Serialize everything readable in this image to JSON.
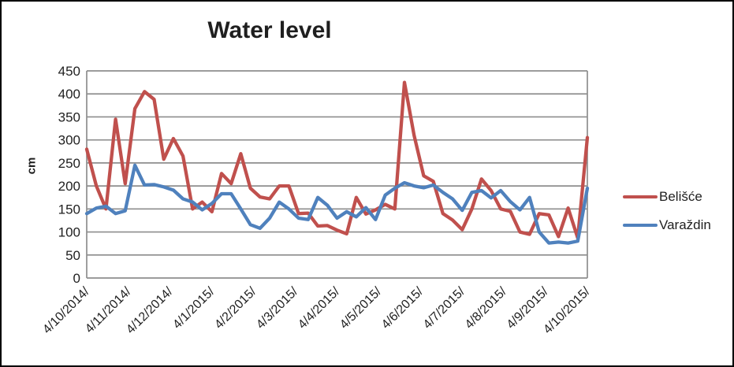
{
  "chart": {
    "title": "Water level",
    "y_axis_title": "cm",
    "legend": [
      {
        "label": "Belišće",
        "color": "#c0504d"
      },
      {
        "label": "Varaždin",
        "color": "#4f81bd"
      }
    ]
  },
  "chart_data": {
    "type": "line",
    "title": "Water level",
    "xlabel": "",
    "ylabel": "cm",
    "ylim": [
      0,
      450
    ],
    "y_ticks": [
      0,
      50,
      100,
      150,
      200,
      250,
      300,
      350,
      400,
      450
    ],
    "grid": "horizontal",
    "legend_position": "right",
    "x_tick_labels": [
      "4/10/2014/",
      "4/11/2014/",
      "4/12/2014/",
      "4/1/2015/",
      "4/2/2015/",
      "4/3/2015/",
      "4/4/2015/",
      "4/5/2015/",
      "4/6/2015/",
      "4/7/2015/",
      "4/8/2015/",
      "4/9/2015/",
      "4/10/2015/"
    ],
    "x_description": "weekly water-level readings from 4 Oct 2014 to 4 Oct 2015, monthly tick labels",
    "series": [
      {
        "name": "Belišće",
        "color": "#c0504d",
        "values": [
          280,
          200,
          150,
          345,
          205,
          368,
          405,
          388,
          258,
          303,
          265,
          150,
          165,
          144,
          227,
          205,
          270,
          195,
          176,
          172,
          200,
          200,
          140,
          141,
          113,
          114,
          104,
          96,
          175,
          139,
          148,
          160,
          150,
          425,
          310,
          222,
          210,
          140,
          126,
          105,
          150,
          215,
          190,
          150,
          145,
          100,
          95,
          140,
          137,
          90,
          152,
          87,
          305
        ]
      },
      {
        "name": "Varaždin",
        "color": "#4f81bd",
        "values": [
          140,
          152,
          156,
          140,
          146,
          245,
          202,
          203,
          198,
          191,
          172,
          165,
          148,
          162,
          183,
          183,
          150,
          116,
          108,
          130,
          165,
          150,
          130,
          127,
          175,
          158,
          130,
          144,
          133,
          153,
          127,
          180,
          195,
          207,
          200,
          196,
          202,
          186,
          172,
          147,
          186,
          190,
          174,
          190,
          166,
          148,
          175,
          100,
          76,
          78,
          76,
          80,
          195
        ]
      }
    ]
  }
}
